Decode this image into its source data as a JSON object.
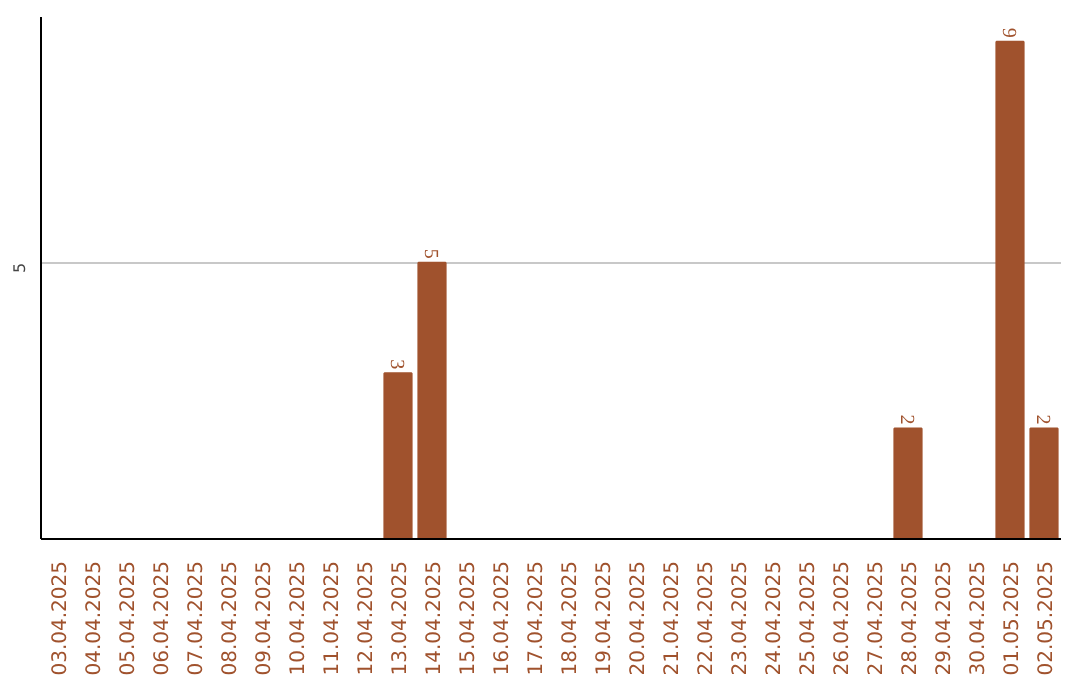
{
  "chart_data": {
    "type": "bar",
    "categories": [
      "03.04.2025",
      "04.04.2025",
      "05.04.2025",
      "06.04.2025",
      "07.04.2025",
      "08.04.2025",
      "09.04.2025",
      "10.04.2025",
      "11.04.2025",
      "12.04.2025",
      "13.04.2025",
      "14.04.2025",
      "15.04.2025",
      "16.04.2025",
      "17.04.2025",
      "18.04.2025",
      "19.04.2025",
      "20.04.2025",
      "21.04.2025",
      "22.04.2025",
      "23.04.2025",
      "24.04.2025",
      "25.04.2025",
      "26.04.2025",
      "27.04.2025",
      "28.04.2025",
      "29.04.2025",
      "30.04.2025",
      "01.05.2025",
      "02.05.2025"
    ],
    "values": [
      0,
      0,
      0,
      0,
      0,
      0,
      0,
      0,
      0,
      0,
      3,
      5,
      0,
      0,
      0,
      0,
      0,
      0,
      0,
      0,
      0,
      0,
      0,
      0,
      0,
      2,
      0,
      0,
      9,
      2
    ],
    "value_labels": [
      null,
      null,
      null,
      null,
      null,
      null,
      null,
      null,
      null,
      null,
      "3",
      "5",
      null,
      null,
      null,
      null,
      null,
      null,
      null,
      null,
      null,
      null,
      null,
      null,
      null,
      "2",
      null,
      null,
      "9",
      "2"
    ],
    "color": "#a0522d",
    "ylim": [
      0,
      9.45
    ],
    "yticks": [
      5
    ],
    "grid": "y"
  }
}
